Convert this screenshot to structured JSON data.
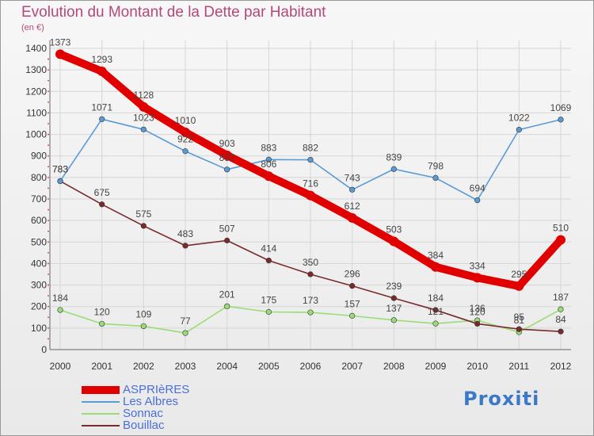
{
  "title": "Evolution du Montant de la Dette par Habitant",
  "subtitle": "(en €)",
  "logo": "Proxiti",
  "chart_data": {
    "type": "line",
    "title": "Evolution du Montant de la Dette par Habitant",
    "ylabel": "(en €)",
    "x": [
      "2000",
      "2001",
      "2002",
      "2003",
      "2004",
      "2005",
      "2006",
      "2007",
      "2008",
      "2009",
      "2010",
      "2011",
      "2012"
    ],
    "ylim": [
      0,
      1400
    ],
    "yticks": [
      0,
      100,
      200,
      300,
      400,
      500,
      600,
      700,
      800,
      900,
      1000,
      1100,
      1200,
      1300,
      1400
    ],
    "grid": true,
    "legend": "bottom-left",
    "series": [
      {
        "name": "ASPRIèRES",
        "color": "#e00000",
        "values": [
          1373,
          1293,
          1128,
          1010,
          903,
          806,
          716,
          612,
          503,
          384,
          334,
          295,
          510
        ]
      },
      {
        "name": "Les Albres",
        "color": "#5b9bd5",
        "values": [
          783,
          1071,
          1023,
          922,
          837,
          883,
          882,
          743,
          839,
          798,
          694,
          1022,
          1069
        ]
      },
      {
        "name": "Sonnac",
        "color": "#99dd77",
        "values": [
          184,
          120,
          109,
          77,
          201,
          175,
          173,
          157,
          137,
          121,
          136,
          81,
          187
        ]
      },
      {
        "name": "Bouillac",
        "color": "#7a2a2a",
        "values": [
          783,
          675,
          575,
          483,
          507,
          414,
          350,
          296,
          239,
          184,
          120,
          95,
          84
        ]
      }
    ]
  }
}
